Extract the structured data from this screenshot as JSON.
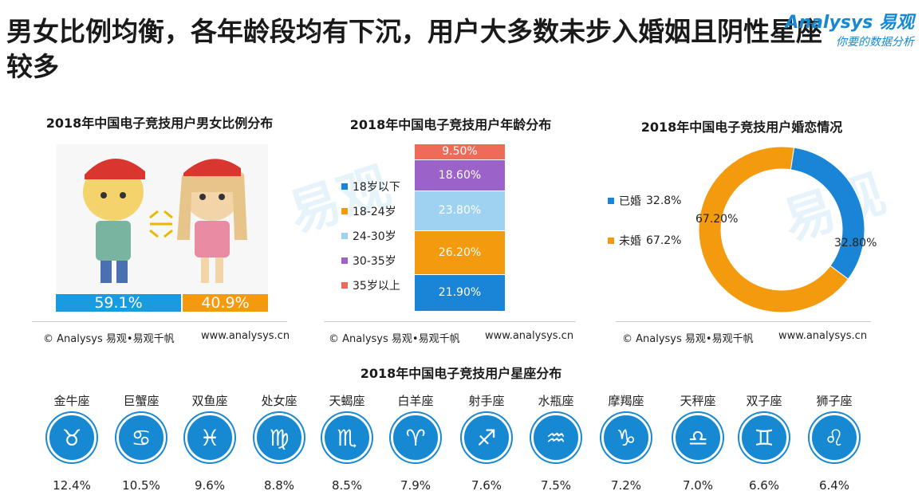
{
  "header": {
    "headline": "男女比例均衡，各年龄段均有下沉，用户大多数未步入婚姻且阴性星座较多",
    "brand_name": "Analysys 易观",
    "brand_slogan": "你要的数据分析"
  },
  "watermark": "易观",
  "footer": {
    "copyright": "© Analysys 易观•易观千帆",
    "url": "www.analysys.cn"
  },
  "gender": {
    "title": "2018年中国电子竞技用户男女比例分布",
    "male_pct": "59.1%",
    "female_pct": "40.9%",
    "male_color": "#1a9be0",
    "female_color": "#f39a0f"
  },
  "age": {
    "title": "2018年中国电子竞技用户年龄分布",
    "legend": [
      "18岁以下",
      "18-24岁",
      "24-30岁",
      "30-35岁",
      "35岁以上"
    ],
    "segments": [
      {
        "label": "21.90%",
        "value": 21.9,
        "color": "#1a84d6"
      },
      {
        "label": "26.20%",
        "value": 26.2,
        "color": "#f39a0f"
      },
      {
        "label": "23.80%",
        "value": 23.8,
        "color": "#9fd1f1"
      },
      {
        "label": "18.60%",
        "value": 18.6,
        "color": "#9b63c9"
      },
      {
        "label": "9.50%",
        "value": 9.5,
        "color": "#ee6b5a"
      }
    ]
  },
  "marital": {
    "title": "2018年中国电子竞技用户婚恋情况",
    "married": {
      "name": "已婚",
      "pct": "32.8%",
      "chart_label": "32.80%",
      "value": 32.8,
      "color": "#1a84d6"
    },
    "unmarried": {
      "name": "未婚",
      "pct": "67.2%",
      "chart_label": "67.20%",
      "value": 67.2,
      "color": "#f39a0f"
    }
  },
  "zodiac": {
    "title": "2018年中国电子竞技用户星座分布",
    "items": [
      {
        "name": "金牛座",
        "pct": "12.4%",
        "glyph": "♉"
      },
      {
        "name": "巨蟹座",
        "pct": "10.5%",
        "glyph": "♋"
      },
      {
        "name": "双鱼座",
        "pct": "9.6%",
        "glyph": "♓"
      },
      {
        "name": "处女座",
        "pct": "8.8%",
        "glyph": "♍"
      },
      {
        "name": "天蝎座",
        "pct": "8.5%",
        "glyph": "♏"
      },
      {
        "name": "白羊座",
        "pct": "7.9%",
        "glyph": "♈"
      },
      {
        "name": "射手座",
        "pct": "7.6%",
        "glyph": "♐"
      },
      {
        "name": "水瓶座",
        "pct": "7.5%",
        "glyph": "♒"
      },
      {
        "name": "摩羯座",
        "pct": "7.2%",
        "glyph": "♑"
      },
      {
        "name": "天秤座",
        "pct": "7.0%",
        "glyph": "♎"
      },
      {
        "name": "双子座",
        "pct": "6.6%",
        "glyph": "♊"
      },
      {
        "name": "狮子座",
        "pct": "6.4%",
        "glyph": "♌"
      }
    ]
  },
  "chart_data": [
    {
      "type": "bar",
      "title": "2018年中国电子竞技用户男女比例分布",
      "categories": [
        "男",
        "女"
      ],
      "values": [
        59.1,
        40.9
      ]
    },
    {
      "type": "bar",
      "title": "2018年中国电子竞技用户年龄分布",
      "categories": [
        "18岁以下",
        "18-24岁",
        "24-30岁",
        "30-35岁",
        "35岁以上"
      ],
      "values": [
        21.9,
        26.2,
        23.8,
        18.6,
        9.5
      ]
    },
    {
      "type": "pie",
      "title": "2018年中国电子竞技用户婚恋情况",
      "categories": [
        "已婚",
        "未婚"
      ],
      "values": [
        32.8,
        67.2
      ]
    },
    {
      "type": "bar",
      "title": "2018年中国电子竞技用户星座分布",
      "categories": [
        "金牛座",
        "巨蟹座",
        "双鱼座",
        "处女座",
        "天蝎座",
        "白羊座",
        "射手座",
        "水瓶座",
        "摩羯座",
        "天秤座",
        "双子座",
        "狮子座"
      ],
      "values": [
        12.4,
        10.5,
        9.6,
        8.8,
        8.5,
        7.9,
        7.6,
        7.5,
        7.2,
        7.0,
        6.6,
        6.4
      ]
    }
  ]
}
